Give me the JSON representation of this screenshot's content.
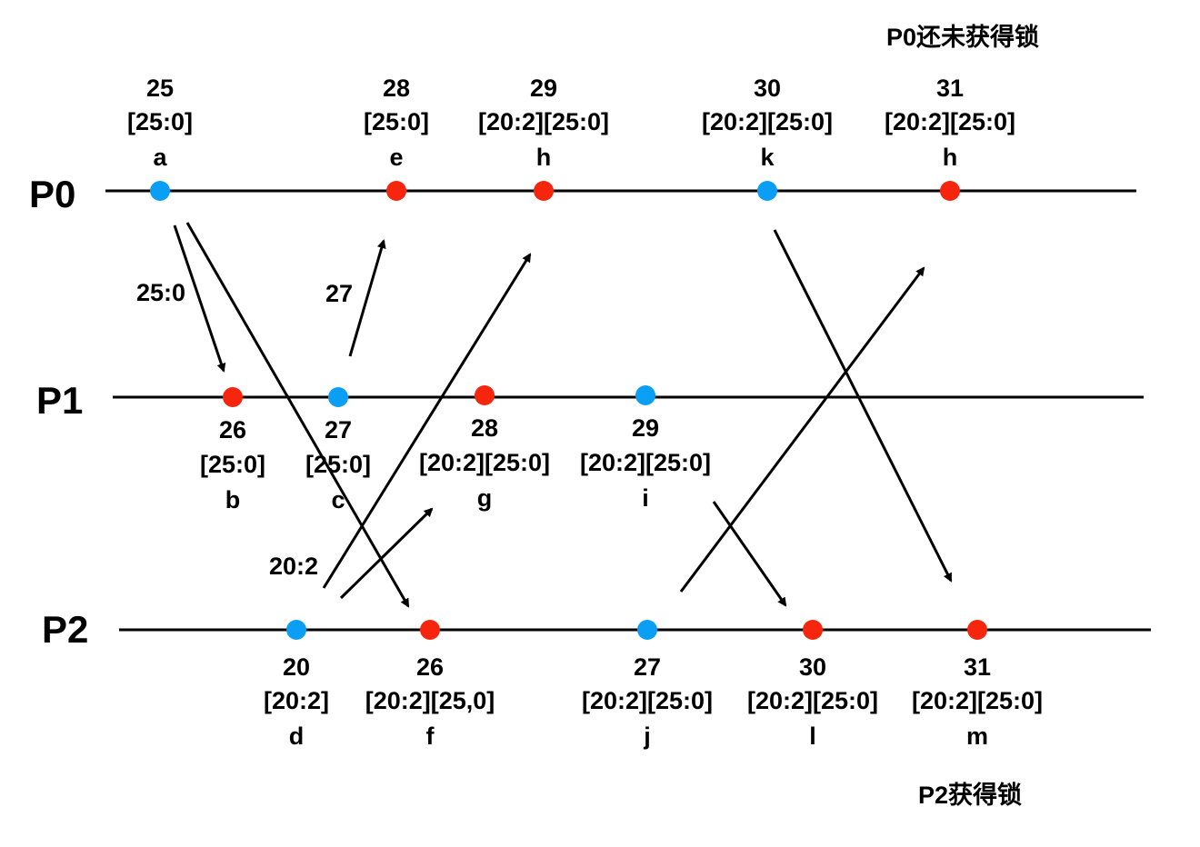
{
  "colors": {
    "blue": "#0a9ff5",
    "red": "#f5260d",
    "line": "#000000"
  },
  "processes": [
    {
      "id": "P0",
      "label": "P0"
    },
    {
      "id": "P1",
      "label": "P1"
    },
    {
      "id": "P2",
      "label": "P2"
    }
  ],
  "events": [
    {
      "id": "a",
      "process": "P0",
      "time": "25",
      "vector": "[25:0]",
      "name": "a",
      "color": "blue"
    },
    {
      "id": "e",
      "process": "P0",
      "time": "28",
      "vector": "[25:0]",
      "name": "e",
      "color": "red"
    },
    {
      "id": "h1",
      "process": "P0",
      "time": "29",
      "vector": "[20:2][25:0]",
      "name": "h",
      "color": "red"
    },
    {
      "id": "k",
      "process": "P0",
      "time": "30",
      "vector": "[20:2][25:0]",
      "name": "k",
      "color": "blue"
    },
    {
      "id": "h2",
      "process": "P0",
      "time": "31",
      "vector": "[20:2][25:0]",
      "name": "h",
      "color": "red"
    },
    {
      "id": "b",
      "process": "P1",
      "time": "26",
      "vector": "[25:0]",
      "name": "b",
      "color": "red"
    },
    {
      "id": "c",
      "process": "P1",
      "time": "27",
      "vector": "[25:0]",
      "name": "c",
      "color": "blue"
    },
    {
      "id": "g",
      "process": "P1",
      "time": "28",
      "vector": "[20:2][25:0]",
      "name": "g",
      "color": "red"
    },
    {
      "id": "i",
      "process": "P1",
      "time": "29",
      "vector": "[20:2][25:0]",
      "name": "i",
      "color": "blue"
    },
    {
      "id": "d",
      "process": "P2",
      "time": "20",
      "vector": "[20:2]",
      "name": "d",
      "color": "blue"
    },
    {
      "id": "f",
      "process": "P2",
      "time": "26",
      "vector": "[20:2][25,0]",
      "name": "f",
      "color": "red"
    },
    {
      "id": "j",
      "process": "P2",
      "time": "27",
      "vector": "[20:2][25:0]",
      "name": "j",
      "color": "blue"
    },
    {
      "id": "l",
      "process": "P2",
      "time": "30",
      "vector": "[20:2][25:0]",
      "name": "l",
      "color": "red"
    },
    {
      "id": "m",
      "process": "P2",
      "time": "31",
      "vector": "[20:2][25:0]",
      "name": "m",
      "color": "red"
    }
  ],
  "messages": [
    {
      "id": "a-b",
      "from": "a",
      "to": "b",
      "label": "25:0"
    },
    {
      "id": "a-f",
      "from": "a",
      "to": "f",
      "label": ""
    },
    {
      "id": "c-e",
      "from": "c",
      "to": "e",
      "label": "27"
    },
    {
      "id": "d-h",
      "from": "d",
      "to": "h1",
      "label": "20:2"
    },
    {
      "id": "d-g",
      "from": "d",
      "to": "g",
      "label": ""
    },
    {
      "id": "i-l",
      "from": "i",
      "to": "l",
      "label": ""
    },
    {
      "id": "j-h",
      "from": "j",
      "to": "h2",
      "label": ""
    },
    {
      "id": "k-m",
      "from": "k",
      "to": "m",
      "label": ""
    }
  ],
  "notes": {
    "p0_status": "P0还未获得锁",
    "p2_status": "P2获得锁"
  }
}
